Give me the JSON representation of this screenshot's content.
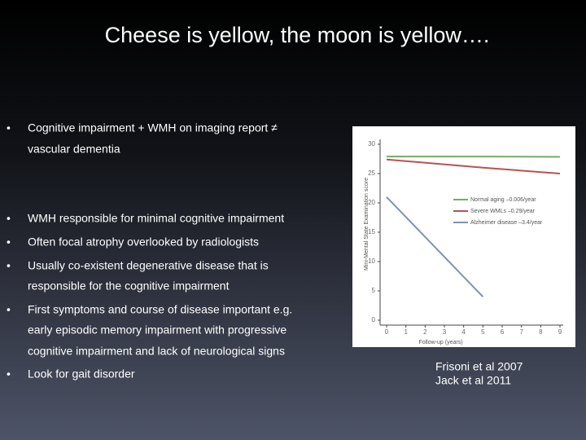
{
  "title": "Cheese is yellow, the moon is yellow….",
  "bullets": [
    [
      "Cognitive impairment + WMH on imaging report ≠",
      "vascular dementia"
    ],
    [
      "WMH responsible for minimal cognitive impairment"
    ],
    [
      "Often focal atrophy overlooked by radiologists"
    ],
    [
      "Usually co-existent degenerative disease that is",
      "responsible for the cognitive impairment"
    ],
    [
      "First symptoms and course of disease important e.g.",
      "early episodic memory impairment with progressive",
      "cognitive impairment and lack of neurological signs"
    ],
    [
      "Look for gait disorder"
    ]
  ],
  "bullet_symbol": "•",
  "citations": [
    "Frisoni et al 2007",
    "Jack et al 2011"
  ],
  "chart_data": {
    "type": "line",
    "x_label": "Follow-up (years)",
    "y_label": "Mini-Mental State Examination score",
    "x": [
      0,
      5,
      9
    ],
    "series": [
      {
        "name": "Normal aging –0.006/year",
        "color": "#7aa86a",
        "values": [
          27.9,
          27.9,
          27.85
        ]
      },
      {
        "name": "Severe WMLs –0.29/year",
        "color": "#b5544f",
        "values": [
          27.4,
          26.0,
          25.0
        ]
      },
      {
        "name": "Alzheimer disease –3.4/year",
        "color": "#7f92b4",
        "values": [
          21,
          4,
          null
        ]
      }
    ],
    "xlim": [
      0,
      9
    ],
    "xticks": [
      0,
      1,
      2,
      3,
      4,
      5,
      6,
      7,
      8,
      9
    ],
    "ylim": [
      0,
      30
    ],
    "yticks": [
      0,
      5,
      10,
      15,
      20,
      25,
      30
    ]
  }
}
